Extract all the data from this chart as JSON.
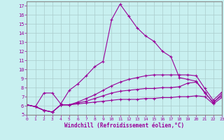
{
  "xlabel": "Windchill (Refroidissement éolien,°C)",
  "bg_color": "#c8f0f0",
  "line_color": "#990099",
  "xlim": [
    0,
    23
  ],
  "ylim": [
    5,
    17.5
  ],
  "xticks": [
    0,
    1,
    2,
    3,
    4,
    5,
    6,
    7,
    8,
    9,
    10,
    11,
    12,
    13,
    14,
    15,
    16,
    17,
    18,
    19,
    20,
    21,
    22,
    23
  ],
  "yticks": [
    5,
    6,
    7,
    8,
    9,
    10,
    11,
    12,
    13,
    14,
    15,
    16,
    17
  ],
  "series": [
    [
      6.1,
      5.9,
      5.5,
      5.3,
      6.1,
      6.1,
      6.2,
      6.3,
      6.4,
      6.5,
      6.6,
      6.7,
      6.7,
      6.7,
      6.8,
      6.8,
      6.9,
      6.9,
      7.0,
      7.0,
      7.1,
      7.0,
      6.2,
      6.9
    ],
    [
      6.1,
      5.9,
      5.5,
      5.3,
      6.1,
      6.1,
      6.3,
      6.5,
      6.8,
      7.1,
      7.4,
      7.6,
      7.7,
      7.8,
      7.9,
      7.9,
      8.0,
      8.0,
      8.1,
      8.5,
      8.6,
      7.5,
      6.3,
      7.3
    ],
    [
      6.1,
      5.9,
      5.5,
      5.3,
      6.1,
      6.1,
      6.4,
      6.8,
      7.2,
      7.7,
      8.2,
      8.6,
      8.9,
      9.1,
      9.3,
      9.4,
      9.4,
      9.4,
      9.4,
      9.4,
      9.3,
      7.9,
      6.6,
      7.5
    ],
    [
      6.1,
      5.9,
      7.4,
      7.4,
      6.2,
      7.7,
      8.4,
      9.3,
      10.3,
      10.9,
      15.5,
      17.2,
      15.9,
      14.6,
      13.7,
      13.1,
      12.0,
      11.4,
      9.1,
      8.9,
      8.7,
      7.4,
      6.4,
      7.1
    ]
  ]
}
